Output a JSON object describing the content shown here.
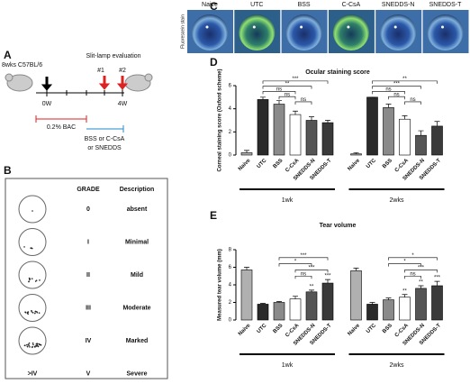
{
  "panel_labels": [
    "A",
    "B",
    "C",
    "D",
    "E"
  ],
  "panel_a": {
    "strain": "8wks C57BL/6",
    "evaluation": "Slit-lamp evaluation",
    "time_points": [
      "#1",
      "#2"
    ],
    "start": "0W",
    "end": "4W",
    "induction": "0.2% BAC",
    "treatment": [
      "BSS or C-CsA",
      "or SNEDDS"
    ]
  },
  "panel_b": {
    "header": [
      "GRADE",
      "Description"
    ],
    "rows": [
      [
        "0",
        "absent"
      ],
      [
        "I",
        "Minimal"
      ],
      [
        "II",
        "Mild"
      ],
      [
        "III",
        "Moderate"
      ],
      [
        "IV",
        "Marked"
      ],
      [
        "V",
        "Severe"
      ]
    ],
    "extra_grade": ">IV"
  },
  "panel_c": {
    "side_label": "Fluorescein stain",
    "columns": [
      "Naive",
      "UTC",
      "BSS",
      "C-CsA",
      "SNEDDS-N",
      "SNEDDS-T"
    ]
  },
  "chart_data": [
    {
      "type": "bar",
      "title": "Ocular staining score",
      "y_label": "Corneal staining score (Oxford scheme)",
      "categories": [
        "1wk",
        "2wks"
      ],
      "ylim": [
        0,
        6
      ],
      "yticks": [
        0,
        2,
        4,
        6
      ],
      "series": [
        {
          "name": "Naive",
          "color": "#b0b0b0",
          "values": [
            0.2,
            0.1
          ],
          "errors": [
            0.2,
            0.1
          ]
        },
        {
          "name": "UTC",
          "color": "#2a2a2a",
          "values": [
            4.8,
            5.0
          ],
          "errors": [
            0.2,
            0.0
          ]
        },
        {
          "name": "BSS",
          "color": "#8a8a8a",
          "values": [
            4.4,
            4.1
          ],
          "errors": [
            0.3,
            0.3
          ]
        },
        {
          "name": "C-CsA",
          "color": "#ffffff",
          "values": [
            3.5,
            3.1
          ],
          "errors": [
            0.3,
            0.3
          ]
        },
        {
          "name": "SNEDDS-N",
          "color": "#555555",
          "values": [
            3.0,
            1.7
          ],
          "errors": [
            0.3,
            0.4
          ]
        },
        {
          "name": "SNEDDS-T",
          "color": "#3a3a3a",
          "values": [
            2.8,
            2.5
          ],
          "errors": [
            0.2,
            0.4
          ]
        }
      ],
      "significance": [
        [
          "***",
          "**",
          "ns",
          "ns",
          "ns"
        ],
        [
          "**",
          "***",
          "ns",
          "ns",
          "ns"
        ]
      ],
      "bar_marks": [
        [],
        []
      ]
    },
    {
      "type": "bar",
      "title": "Tear volume",
      "y_label": "Measured tear volume (mm)",
      "categories": [
        "1wk",
        "2wks"
      ],
      "ylim": [
        0,
        8
      ],
      "yticks": [
        0,
        2,
        4,
        6,
        8
      ],
      "series": [
        {
          "name": "Naive",
          "color": "#b0b0b0",
          "values": [
            5.7,
            5.6
          ],
          "errors": [
            0.3,
            0.3
          ]
        },
        {
          "name": "UTC",
          "color": "#2a2a2a",
          "values": [
            1.8,
            1.8
          ],
          "errors": [
            0.1,
            0.2
          ]
        },
        {
          "name": "BSS",
          "color": "#8a8a8a",
          "values": [
            2.0,
            2.3
          ],
          "errors": [
            0.1,
            0.2
          ]
        },
        {
          "name": "C-CsA",
          "color": "#ffffff",
          "values": [
            2.4,
            2.6
          ],
          "errors": [
            0.3,
            0.3
          ]
        },
        {
          "name": "SNEDDS-N",
          "color": "#555555",
          "values": [
            3.2,
            3.6
          ],
          "errors": [
            0.2,
            0.3
          ]
        },
        {
          "name": "SNEDDS-T",
          "color": "#3a3a3a",
          "values": [
            4.2,
            3.9
          ],
          "errors": [
            0.4,
            0.5
          ]
        }
      ],
      "significance": [
        [
          "***",
          "*",
          "***",
          "ns"
        ],
        [
          "*",
          "*",
          "***",
          "ns"
        ]
      ],
      "bar_marks": [
        [
          "**",
          "***"
        ],
        [
          "**",
          "**",
          "***"
        ]
      ]
    }
  ]
}
